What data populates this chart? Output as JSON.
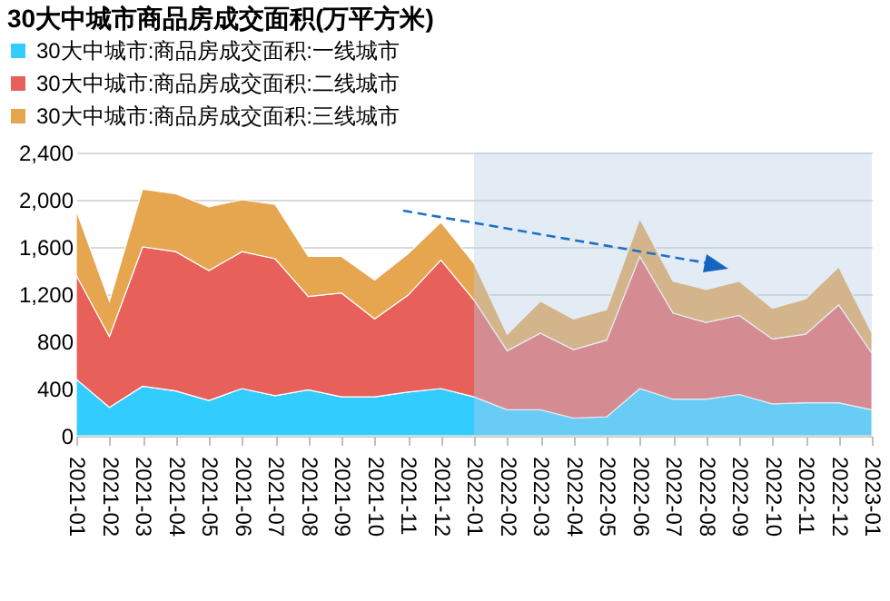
{
  "chart_data": {
    "type": "area",
    "stacked": true,
    "title": "30大中城市商品房成交面积(万平方米)",
    "categories": [
      "2021-01",
      "2021-02",
      "2021-03",
      "2021-04",
      "2021-05",
      "2021-06",
      "2021-07",
      "2021-08",
      "2021-09",
      "2021-10",
      "2021-11",
      "2021-12",
      "2022-01",
      "2022-02",
      "2022-03",
      "2022-04",
      "2022-05",
      "2022-06",
      "2022-07",
      "2022-08",
      "2022-09",
      "2022-10",
      "2022-11",
      "2022-12",
      "2023-01"
    ],
    "series": [
      {
        "name": "30大中城市:商品房成交面积:一线城市",
        "color": "#33ccff",
        "values": [
          480,
          240,
          420,
          380,
          300,
          400,
          340,
          390,
          330,
          330,
          370,
          400,
          330,
          220,
          220,
          150,
          160,
          400,
          310,
          310,
          350,
          270,
          280,
          280,
          220
        ]
      },
      {
        "name": "30大中城市:商品房成交面积:二线城市",
        "color": "#e8605a",
        "values": [
          880,
          600,
          1180,
          1180,
          1100,
          1160,
          1160,
          790,
          880,
          660,
          820,
          1090,
          820,
          500,
          650,
          580,
          650,
          1120,
          730,
          650,
          670,
          550,
          580,
          830,
          480
        ]
      },
      {
        "name": "30大中城市:商品房成交面积:三线城市",
        "color": "#e6a54f",
        "values": [
          550,
          300,
          490,
          490,
          540,
          440,
          460,
          340,
          310,
          330,
          350,
          320,
          310,
          140,
          270,
          260,
          260,
          320,
          270,
          280,
          290,
          260,
          300,
          320,
          170
        ]
      }
    ],
    "ylim": [
      0,
      2400
    ],
    "yticks": [
      {
        "value": 0,
        "label": "0"
      },
      {
        "value": 400,
        "label": "400"
      },
      {
        "value": 800,
        "label": "800"
      },
      {
        "value": 1200,
        "label": "1,200"
      },
      {
        "value": 1600,
        "label": "1,600"
      },
      {
        "value": 2000,
        "label": "2,000"
      },
      {
        "value": 2400,
        "label": "2,400"
      }
    ],
    "grid": "y",
    "legend": "top left",
    "bands": [
      {
        "axis": "x",
        "from": "2022-01",
        "to": "2023-01",
        "color": "#b8cce6"
      }
    ]
  }
}
